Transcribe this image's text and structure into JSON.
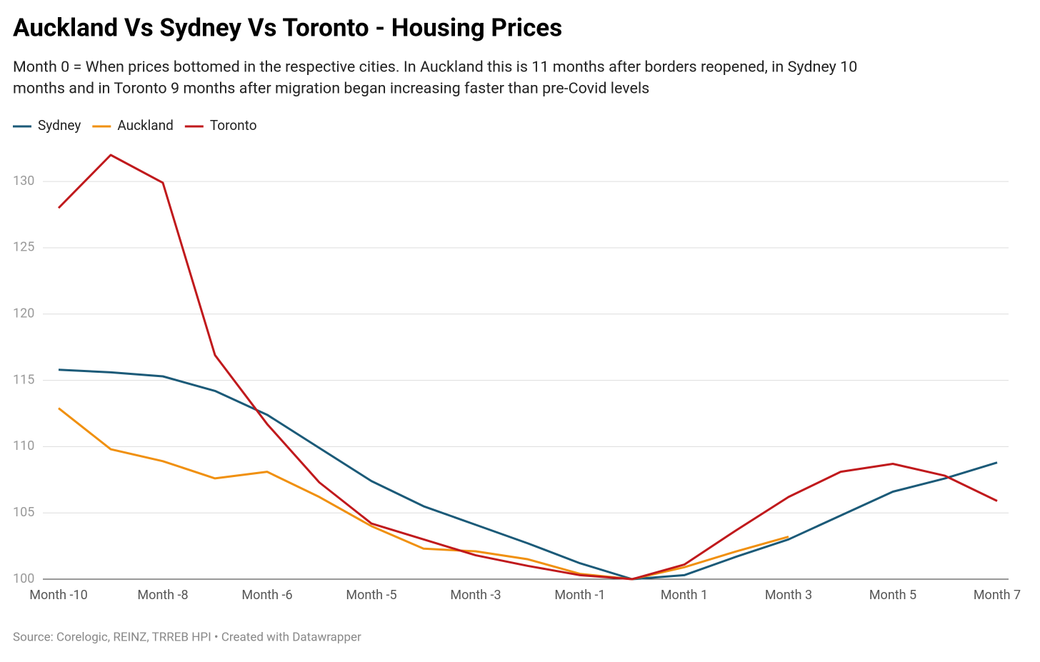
{
  "chart_data": {
    "type": "line",
    "title": "Auckland Vs Sydney Vs Toronto - Housing Prices",
    "subtitle": [
      "Month 0 = When prices bottomed in the respective cities. In Auckland this is 11 months after borders reopened, in Sydney 10",
      "months and in Toronto 9 months after migration began increasing faster than pre-Covid levels"
    ],
    "source": "Source: Corelogic, REINZ, TRREB HPI • Created with Datawrapper",
    "categories": [
      "Month -10",
      null,
      "Month -8",
      null,
      "Month -6",
      null,
      "Month -5",
      null,
      "Month -3",
      null,
      "Month -1",
      null,
      "Month 1",
      null,
      "Month 3",
      null,
      "Month 5",
      null,
      "Month 7"
    ],
    "series": [
      {
        "name": "Sydney",
        "color": "#1b5a78",
        "values": [
          115.8,
          115.6,
          115.3,
          114.2,
          112.4,
          109.9,
          107.4,
          105.5,
          104.1,
          102.7,
          101.2,
          100,
          100.3,
          101.7,
          103,
          104.8,
          106.6,
          107.6,
          108.8
        ]
      },
      {
        "name": "Auckland",
        "color": "#f0900f",
        "values": [
          112.9,
          109.8,
          108.9,
          107.6,
          108.1,
          106.2,
          104,
          102.3,
          102.1,
          101.5,
          100.4,
          100,
          100.9,
          102.1,
          103.2,
          null,
          null,
          null,
          null
        ]
      },
      {
        "name": "Toronto",
        "color": "#c0191c",
        "values": [
          128,
          132,
          129.9,
          116.9,
          111.7,
          107.3,
          104.2,
          103,
          101.8,
          101,
          100.3,
          100,
          101.1,
          103.7,
          106.2,
          108.1,
          108.7,
          107.8,
          105.9
        ]
      }
    ],
    "ylim": [
      100,
      132
    ],
    "yticks": [
      100,
      105,
      110,
      115,
      120,
      125,
      130
    ],
    "grid": true
  }
}
